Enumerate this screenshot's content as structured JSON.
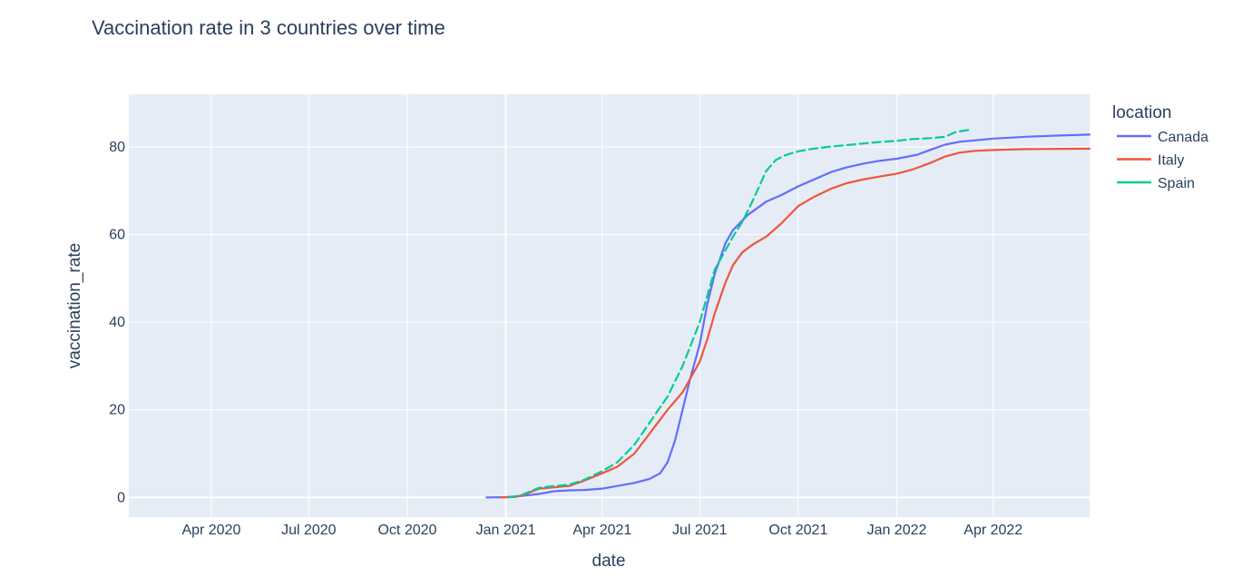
{
  "chart_data": {
    "type": "line",
    "title": "Vaccination rate in 3 countries over time",
    "xlabel": "date",
    "ylabel": "vaccination_rate",
    "x_axis_type": "date",
    "xlim": [
      "2020-01-15",
      "2022-06-30"
    ],
    "ylim": [
      -4.5,
      92
    ],
    "x_ticks": [
      {
        "date": "2020-04-01",
        "label": "Apr 2020"
      },
      {
        "date": "2020-07-01",
        "label": "Jul 2020"
      },
      {
        "date": "2020-10-01",
        "label": "Oct 2020"
      },
      {
        "date": "2021-01-01",
        "label": "Jan 2021"
      },
      {
        "date": "2021-04-01",
        "label": "Apr 2021"
      },
      {
        "date": "2021-07-01",
        "label": "Jul 2021"
      },
      {
        "date": "2021-10-01",
        "label": "Oct 2021"
      },
      {
        "date": "2022-01-01",
        "label": "Jan 2022"
      },
      {
        "date": "2022-04-01",
        "label": "Apr 2022"
      }
    ],
    "y_ticks": [
      0,
      20,
      40,
      60,
      80
    ],
    "grid": true,
    "plot_background": "#e5ecf6",
    "legend": {
      "title": "location",
      "position": "right"
    },
    "series": [
      {
        "name": "Canada",
        "color": "#636efa",
        "points": [
          [
            "2020-12-14",
            0
          ],
          [
            "2021-01-01",
            0.05
          ],
          [
            "2021-01-15",
            0.3
          ],
          [
            "2021-02-01",
            0.8
          ],
          [
            "2021-02-15",
            1.4
          ],
          [
            "2021-03-01",
            1.6
          ],
          [
            "2021-03-15",
            1.7
          ],
          [
            "2021-04-01",
            2.0
          ],
          [
            "2021-04-15",
            2.6
          ],
          [
            "2021-05-01",
            3.3
          ],
          [
            "2021-05-15",
            4.2
          ],
          [
            "2021-05-25",
            5.5
          ],
          [
            "2021-06-01",
            8.0
          ],
          [
            "2021-06-08",
            13.0
          ],
          [
            "2021-06-15",
            20.0
          ],
          [
            "2021-06-22",
            27.0
          ],
          [
            "2021-07-01",
            35.0
          ],
          [
            "2021-07-08",
            44.0
          ],
          [
            "2021-07-15",
            51.0
          ],
          [
            "2021-07-25",
            58.0
          ],
          [
            "2021-08-01",
            61.0
          ],
          [
            "2021-08-15",
            64.5
          ],
          [
            "2021-09-01",
            67.5
          ],
          [
            "2021-09-15",
            69.0
          ],
          [
            "2021-10-01",
            71.0
          ],
          [
            "2021-10-15",
            72.5
          ],
          [
            "2021-11-01",
            74.3
          ],
          [
            "2021-11-15",
            75.3
          ],
          [
            "2021-12-01",
            76.2
          ],
          [
            "2021-12-15",
            76.8
          ],
          [
            "2022-01-01",
            77.3
          ],
          [
            "2022-01-20",
            78.2
          ],
          [
            "2022-02-01",
            79.3
          ],
          [
            "2022-02-15",
            80.5
          ],
          [
            "2022-03-01",
            81.2
          ],
          [
            "2022-03-15",
            81.5
          ],
          [
            "2022-04-01",
            81.9
          ],
          [
            "2022-05-01",
            82.3
          ],
          [
            "2022-06-01",
            82.6
          ],
          [
            "2022-06-30",
            82.8
          ]
        ]
      },
      {
        "name": "Italy",
        "color": "#ef553b",
        "points": [
          [
            "2020-12-27",
            0
          ],
          [
            "2021-01-10",
            0.1
          ],
          [
            "2021-01-20",
            0.8
          ],
          [
            "2021-02-01",
            2.0
          ],
          [
            "2021-02-15",
            2.3
          ],
          [
            "2021-03-01",
            2.6
          ],
          [
            "2021-03-15",
            3.8
          ],
          [
            "2021-04-01",
            5.5
          ],
          [
            "2021-04-15",
            7.0
          ],
          [
            "2021-05-01",
            10.0
          ],
          [
            "2021-05-15",
            14.5
          ],
          [
            "2021-06-01",
            20.0
          ],
          [
            "2021-06-15",
            24.0
          ],
          [
            "2021-07-01",
            31.0
          ],
          [
            "2021-07-08",
            36.0
          ],
          [
            "2021-07-15",
            42.0
          ],
          [
            "2021-07-25",
            49.0
          ],
          [
            "2021-08-01",
            53.0
          ],
          [
            "2021-08-10",
            56.0
          ],
          [
            "2021-08-20",
            57.8
          ],
          [
            "2021-09-01",
            59.5
          ],
          [
            "2021-09-15",
            62.5
          ],
          [
            "2021-10-01",
            66.5
          ],
          [
            "2021-10-15",
            68.5
          ],
          [
            "2021-11-01",
            70.5
          ],
          [
            "2021-11-15",
            71.7
          ],
          [
            "2021-12-01",
            72.6
          ],
          [
            "2021-12-15",
            73.2
          ],
          [
            "2022-01-01",
            73.9
          ],
          [
            "2022-01-15",
            74.8
          ],
          [
            "2022-02-01",
            76.3
          ],
          [
            "2022-02-15",
            77.8
          ],
          [
            "2022-03-01",
            78.7
          ],
          [
            "2022-03-15",
            79.1
          ],
          [
            "2022-04-01",
            79.3
          ],
          [
            "2022-05-01",
            79.5
          ],
          [
            "2022-06-30",
            79.6
          ]
        ]
      },
      {
        "name": "Spain",
        "color": "#00cc96",
        "points": [
          [
            "2021-01-04",
            0
          ],
          [
            "2021-01-15",
            0.5
          ],
          [
            "2021-02-01",
            2.2
          ],
          [
            "2021-02-15",
            2.6
          ],
          [
            "2021-03-01",
            2.9
          ],
          [
            "2021-03-15",
            4.0
          ],
          [
            "2021-04-01",
            6.0
          ],
          [
            "2021-04-15",
            8.0
          ],
          [
            "2021-05-01",
            12.0
          ],
          [
            "2021-05-15",
            17.0
          ],
          [
            "2021-06-01",
            23.0
          ],
          [
            "2021-06-15",
            30.0
          ],
          [
            "2021-07-01",
            40.0
          ],
          [
            "2021-07-15",
            52.0
          ],
          [
            "2021-08-01",
            59.5
          ],
          [
            "2021-08-10",
            63.0
          ],
          [
            "2021-08-20",
            68.0
          ],
          [
            "2021-09-01",
            74.5
          ],
          [
            "2021-09-10",
            77.0
          ],
          [
            "2021-09-20",
            78.2
          ],
          [
            "2021-10-01",
            79.0
          ],
          [
            "2021-10-15",
            79.6
          ],
          [
            "2021-11-01",
            80.1
          ],
          [
            "2021-11-15",
            80.4
          ],
          [
            "2021-12-01",
            80.8
          ],
          [
            "2021-12-15",
            81.1
          ],
          [
            "2022-01-01",
            81.4
          ],
          [
            "2022-01-15",
            81.8
          ],
          [
            "2022-02-01",
            82.0
          ],
          [
            "2022-02-15",
            82.3
          ],
          [
            "2022-02-25",
            83.4
          ],
          [
            "2022-03-10",
            83.9
          ]
        ]
      }
    ]
  }
}
